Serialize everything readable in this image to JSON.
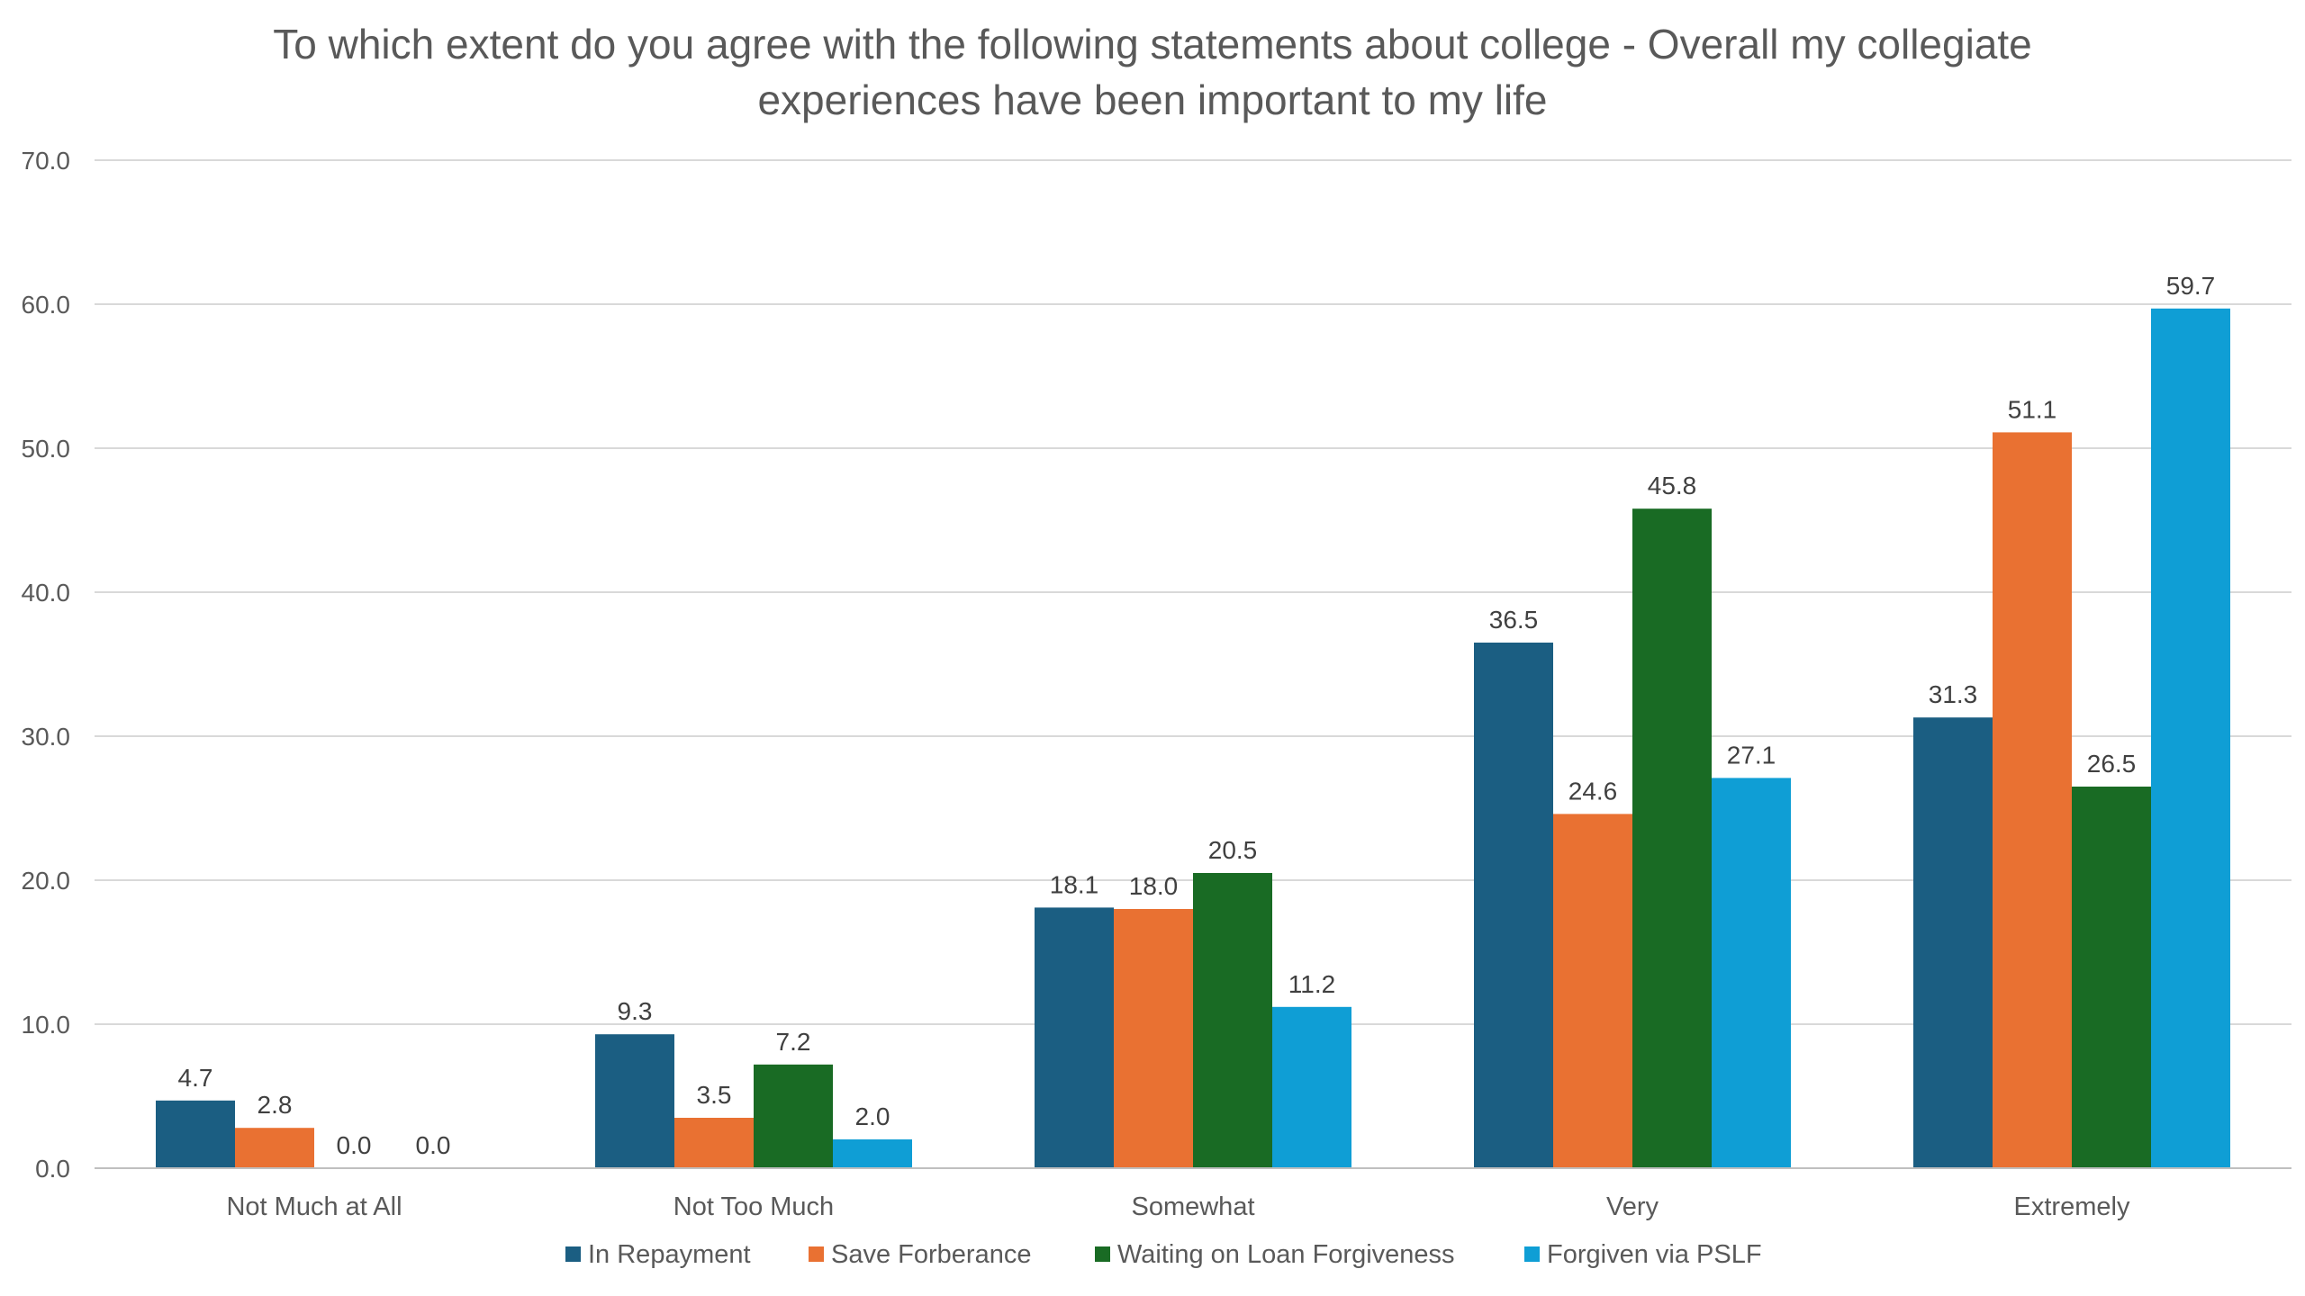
{
  "chart_data": {
    "type": "bar",
    "title": "To which extent do you agree with the following statements about college - Overall my collegiate experiences have been important to my life",
    "title_lines": [
      "To which extent do you agree with the following statements about college - Overall my collegiate",
      "experiences have been important to my life"
    ],
    "xlabel": "",
    "ylabel": "",
    "ylim": [
      0,
      70
    ],
    "y_ticks": [
      0,
      10,
      20,
      30,
      40,
      50,
      60,
      70
    ],
    "y_tick_labels": [
      "0.0",
      "10.0",
      "20.0",
      "30.0",
      "40.0",
      "50.0",
      "60.0",
      "70.0"
    ],
    "grid": true,
    "legend_position": "bottom",
    "categories": [
      "Not Much at All",
      "Not Too Much",
      "Somewhat",
      "Very",
      "Extremely"
    ],
    "series": [
      {
        "name": "In Repayment",
        "color": "#1b5e82",
        "values": [
          4.7,
          9.3,
          18.1,
          36.5,
          31.3
        ],
        "labels": [
          "4.7",
          "9.3",
          "18.1",
          "36.5",
          "31.3"
        ]
      },
      {
        "name": "Save Forberance",
        "color": "#e97132",
        "values": [
          2.8,
          3.5,
          18.0,
          24.6,
          51.1
        ],
        "labels": [
          "2.8",
          "3.5",
          "18.0",
          "24.6",
          "51.1"
        ]
      },
      {
        "name": "Waiting on Loan Forgiveness",
        "color": "#196b24",
        "values": [
          0.0,
          7.2,
          20.5,
          45.8,
          26.5
        ],
        "labels": [
          "0.0",
          "7.2",
          "20.5",
          "45.8",
          "26.5"
        ]
      },
      {
        "name": "Forgiven via PSLF",
        "color": "#0f9ed5",
        "values": [
          0.0,
          2.0,
          11.2,
          27.1,
          59.7
        ],
        "labels": [
          "0.0",
          "2.0",
          "11.2",
          "27.1",
          "59.7"
        ]
      }
    ]
  },
  "colors": {
    "gridline": "#d9d9d9",
    "axis": "#bfbfbf",
    "text": "#595959"
  }
}
